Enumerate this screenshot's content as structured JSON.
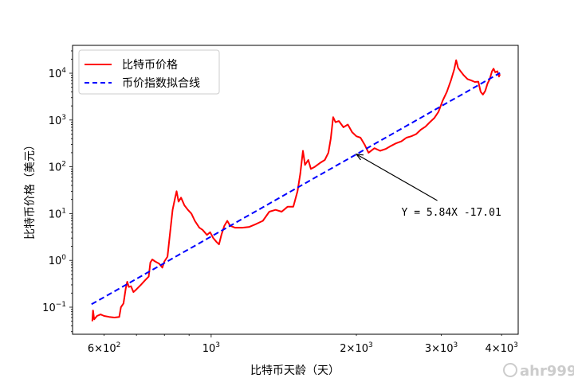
{
  "chart_data": {
    "type": "line",
    "xscale": "log",
    "yscale": "log",
    "xlabel": "比特币天龄（天）",
    "ylabel": "比特币价格（美元）",
    "xlim": [
      516,
      4330
    ],
    "ylim": [
      0.0264,
      39400
    ],
    "x_ticks": [
      {
        "value": 600,
        "base": "6×10",
        "exp": "2"
      },
      {
        "value": 1000,
        "base": "10",
        "exp": "3"
      },
      {
        "value": 2000,
        "base": "2×10",
        "exp": "3"
      },
      {
        "value": 3000,
        "base": "3×10",
        "exp": "3"
      },
      {
        "value": 4000,
        "base": "4×10",
        "exp": "3"
      }
    ],
    "x_minor_ticks": [
      700,
      800,
      900
    ],
    "y_ticks": [
      {
        "value": 0.1,
        "base": "10",
        "exp": "−1"
      },
      {
        "value": 1,
        "base": "10",
        "exp": "0"
      },
      {
        "value": 10,
        "base": "10",
        "exp": "1"
      },
      {
        "value": 100,
        "base": "10",
        "exp": "2"
      },
      {
        "value": 1000,
        "base": "10",
        "exp": "3"
      },
      {
        "value": 10000,
        "base": "10",
        "exp": "4"
      }
    ],
    "legend": {
      "placement": "upper-left",
      "entries": [
        "比特币价格",
        "币价指数拟合线"
      ]
    },
    "series": [
      {
        "name": "比特币价格",
        "color": "#ff0000",
        "style": "solid",
        "points": [
          [
            567,
            0.05
          ],
          [
            569,
            0.085
          ],
          [
            572,
            0.055
          ],
          [
            580,
            0.065
          ],
          [
            590,
            0.07
          ],
          [
            600,
            0.065
          ],
          [
            615,
            0.062
          ],
          [
            630,
            0.06
          ],
          [
            645,
            0.062
          ],
          [
            650,
            0.1
          ],
          [
            658,
            0.12
          ],
          [
            665,
            0.25
          ],
          [
            670,
            0.35
          ],
          [
            675,
            0.27
          ],
          [
            682,
            0.28
          ],
          [
            690,
            0.21
          ],
          [
            700,
            0.24
          ],
          [
            715,
            0.3
          ],
          [
            730,
            0.38
          ],
          [
            742,
            0.45
          ],
          [
            748,
            0.9
          ],
          [
            755,
            1.05
          ],
          [
            765,
            0.95
          ],
          [
            780,
            0.85
          ],
          [
            792,
            0.7
          ],
          [
            800,
            0.95
          ],
          [
            812,
            1.2
          ],
          [
            822,
            4
          ],
          [
            832,
            12
          ],
          [
            842,
            22
          ],
          [
            848,
            30
          ],
          [
            856,
            18
          ],
          [
            866,
            22
          ],
          [
            880,
            15
          ],
          [
            895,
            12
          ],
          [
            910,
            10
          ],
          [
            925,
            7
          ],
          [
            945,
            5
          ],
          [
            960,
            4.5
          ],
          [
            980,
            3.5
          ],
          [
            995,
            4
          ],
          [
            1010,
            3
          ],
          [
            1025,
            2.5
          ],
          [
            1038,
            2.2
          ],
          [
            1050,
            3.5
          ],
          [
            1065,
            5.5
          ],
          [
            1080,
            7
          ],
          [
            1095,
            5.5
          ],
          [
            1120,
            5
          ],
          [
            1160,
            5
          ],
          [
            1200,
            5.2
          ],
          [
            1240,
            6
          ],
          [
            1280,
            7
          ],
          [
            1320,
            11
          ],
          [
            1360,
            12
          ],
          [
            1400,
            11
          ],
          [
            1440,
            14
          ],
          [
            1480,
            14
          ],
          [
            1510,
            30
          ],
          [
            1530,
            70
          ],
          [
            1550,
            220
          ],
          [
            1565,
            110
          ],
          [
            1590,
            140
          ],
          [
            1610,
            90
          ],
          [
            1640,
            100
          ],
          [
            1680,
            120
          ],
          [
            1720,
            140
          ],
          [
            1750,
            200
          ],
          [
            1770,
            400
          ],
          [
            1790,
            1150
          ],
          [
            1810,
            900
          ],
          [
            1840,
            950
          ],
          [
            1880,
            700
          ],
          [
            1920,
            800
          ],
          [
            1960,
            550
          ],
          [
            2000,
            450
          ],
          [
            2040,
            420
          ],
          [
            2080,
            300
          ],
          [
            2120,
            200
          ],
          [
            2180,
            250
          ],
          [
            2240,
            220
          ],
          [
            2300,
            240
          ],
          [
            2360,
            280
          ],
          [
            2420,
            320
          ],
          [
            2480,
            350
          ],
          [
            2540,
            420
          ],
          [
            2600,
            450
          ],
          [
            2660,
            500
          ],
          [
            2720,
            620
          ],
          [
            2780,
            720
          ],
          [
            2840,
            900
          ],
          [
            2900,
            1100
          ],
          [
            2960,
            1500
          ],
          [
            3020,
            2600
          ],
          [
            3080,
            4000
          ],
          [
            3140,
            7000
          ],
          [
            3190,
            12000
          ],
          [
            3220,
            19000
          ],
          [
            3250,
            13000
          ],
          [
            3290,
            11000
          ],
          [
            3340,
            9000
          ],
          [
            3400,
            7500
          ],
          [
            3460,
            7000
          ],
          [
            3520,
            6500
          ],
          [
            3580,
            6600
          ],
          [
            3620,
            4000
          ],
          [
            3660,
            3500
          ],
          [
            3700,
            4200
          ],
          [
            3740,
            6000
          ],
          [
            3780,
            7500
          ],
          [
            3820,
            11000
          ],
          [
            3850,
            12500
          ],
          [
            3880,
            10500
          ],
          [
            3920,
            11000
          ],
          [
            3950,
            8500
          ],
          [
            3970,
            9500
          ]
        ]
      },
      {
        "name": "币价指数拟合线",
        "color": "#0000ff",
        "style": "dashed",
        "fit": {
          "slope": 5.84,
          "intercept": -17.01,
          "x_range": [
            565,
            3970
          ]
        }
      }
    ],
    "annotation": {
      "text": "Y = 5.84X -17.01",
      "xy": [
        2000,
        186
      ],
      "xytext": [
        2480,
        11
      ]
    }
  },
  "watermark": "ahr999"
}
